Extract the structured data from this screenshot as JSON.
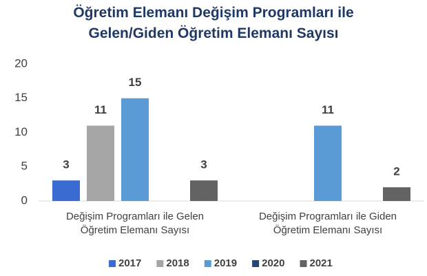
{
  "chart_data": {
    "type": "bar",
    "title": "Öğretim Elemanı Değişim Programları ile Gelen/Giden Öğretim Elemanı Sayısı",
    "categories": [
      "Değişim Programları ile Gelen Öğretim Elemanı Sayısı",
      "Değişim Programları ile Giden Öğretim Elemanı Sayısı"
    ],
    "series": [
      {
        "name": "2017",
        "color": "#3a6bd0",
        "values": [
          3,
          null
        ]
      },
      {
        "name": "2018",
        "color": "#a5a5a5",
        "values": [
          11,
          null
        ]
      },
      {
        "name": "2019",
        "color": "#5b9bd5",
        "values": [
          15,
          11
        ]
      },
      {
        "name": "2020",
        "color": "#264478",
        "values": [
          null,
          null
        ]
      },
      {
        "name": "2021",
        "color": "#636363",
        "values": [
          3,
          2
        ]
      }
    ],
    "ylim": [
      0,
      20
    ],
    "yticks": [
      0,
      5,
      10,
      15,
      20
    ],
    "grid": false,
    "legend": "bottom"
  }
}
